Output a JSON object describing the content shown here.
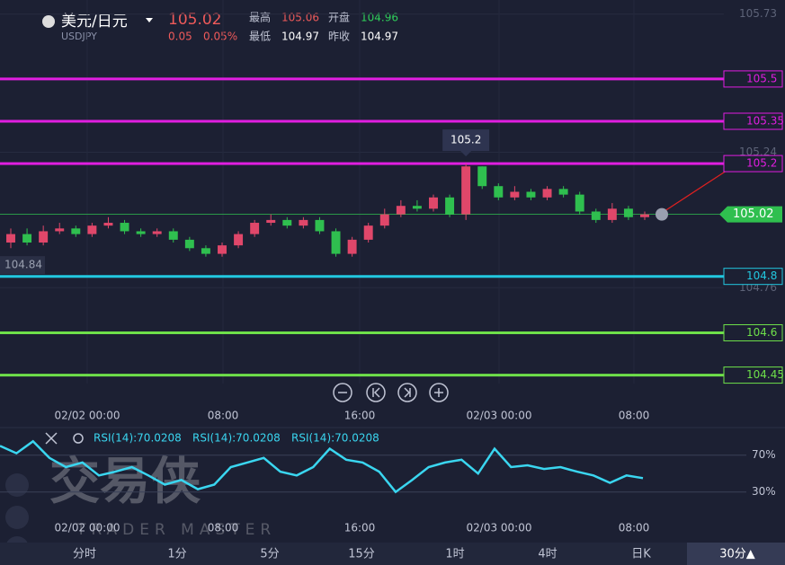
{
  "header": {
    "symbol": "美元/日元",
    "code": "USDJPY",
    "price": "105.02",
    "change": "0.05",
    "change_pct": "0.05%",
    "stats": [
      {
        "label": "最高",
        "value": "105.06"
      },
      {
        "label": "开盘",
        "value": "104.96"
      },
      {
        "label": "最低",
        "value": "104.97"
      },
      {
        "label": "昨收",
        "value": "104.97"
      }
    ]
  },
  "chart_data": {
    "type": "candlestick",
    "ylim": [
      104.42,
      105.78
    ],
    "yticks": [
      105.73,
      105.24,
      104.76
    ],
    "levels": [
      {
        "value": 105.5,
        "color": "#e01ee0"
      },
      {
        "value": 105.35,
        "color": "#e01ee0"
      },
      {
        "value": 105.2,
        "color": "#e01ee0"
      },
      {
        "value": 104.8,
        "color": "#22c8e0"
      },
      {
        "value": 104.6,
        "color": "#6ee04a"
      },
      {
        "value": 104.45,
        "color": "#6ee04a"
      }
    ],
    "last_price": 105.02,
    "cursor_label": 104.84,
    "peak_label": 105.2,
    "up_color": "#e0476a",
    "down_color": "#2fbf4f",
    "ohlc": [
      [
        104.92,
        104.97,
        104.9,
        104.95
      ],
      [
        104.95,
        104.97,
        104.91,
        104.92
      ],
      [
        104.92,
        104.98,
        104.91,
        104.96
      ],
      [
        104.96,
        104.99,
        104.95,
        104.97
      ],
      [
        104.97,
        104.98,
        104.94,
        104.95
      ],
      [
        104.95,
        104.99,
        104.94,
        104.98
      ],
      [
        104.98,
        105.01,
        104.97,
        104.99
      ],
      [
        104.99,
        105.0,
        104.95,
        104.96
      ],
      [
        104.96,
        104.97,
        104.94,
        104.95
      ],
      [
        104.95,
        104.97,
        104.94,
        104.96
      ],
      [
        104.96,
        104.97,
        104.92,
        104.93
      ],
      [
        104.93,
        104.94,
        104.89,
        104.9
      ],
      [
        104.9,
        104.91,
        104.87,
        104.88
      ],
      [
        104.88,
        104.92,
        104.87,
        104.91
      ],
      [
        104.91,
        104.96,
        104.9,
        104.95
      ],
      [
        104.95,
        105.0,
        104.94,
        104.99
      ],
      [
        104.99,
        105.02,
        104.98,
        105.0
      ],
      [
        105.0,
        105.01,
        104.97,
        104.98
      ],
      [
        104.98,
        105.01,
        104.97,
        105.0
      ],
      [
        105.0,
        105.01,
        104.95,
        104.96
      ],
      [
        104.96,
        104.97,
        104.87,
        104.88
      ],
      [
        104.88,
        104.94,
        104.87,
        104.93
      ],
      [
        104.93,
        104.99,
        104.92,
        104.98
      ],
      [
        104.98,
        105.04,
        104.97,
        105.02
      ],
      [
        105.02,
        105.07,
        105.01,
        105.05
      ],
      [
        105.05,
        105.07,
        105.03,
        105.04
      ],
      [
        105.04,
        105.09,
        105.03,
        105.08
      ],
      [
        105.08,
        105.09,
        105.01,
        105.02
      ],
      [
        105.02,
        105.2,
        105.0,
        105.19
      ],
      [
        105.19,
        105.19,
        105.11,
        105.12
      ],
      [
        105.12,
        105.13,
        105.07,
        105.08
      ],
      [
        105.08,
        105.12,
        105.07,
        105.1
      ],
      [
        105.1,
        105.11,
        105.07,
        105.08
      ],
      [
        105.08,
        105.12,
        105.07,
        105.11
      ],
      [
        105.11,
        105.12,
        105.08,
        105.09
      ],
      [
        105.09,
        105.1,
        105.02,
        105.03
      ],
      [
        105.03,
        105.04,
        104.99,
        105.0
      ],
      [
        105.0,
        105.06,
        104.99,
        105.04
      ],
      [
        105.04,
        105.05,
        105.0,
        105.01
      ],
      [
        105.01,
        105.03,
        105.0,
        105.02
      ]
    ],
    "x_labels": [
      "02/02 00:00",
      "08:00",
      "16:00",
      "02/03 00:00",
      "08:00"
    ],
    "rsi": {
      "labels": [
        "RSI(14):70.0208",
        "RSI(14):70.0208",
        "RSI(14):70.0208"
      ],
      "color": "#3ad6f0",
      "ylim": [
        18,
        98
      ],
      "yticks": [
        {
          "value": 70,
          "label": "70%"
        },
        {
          "value": 30,
          "label": "30%"
        }
      ],
      "values": [
        80,
        72,
        85,
        67,
        57,
        62,
        48,
        52,
        57,
        48,
        38,
        43,
        33,
        38,
        57,
        62,
        67,
        52,
        48,
        57,
        77,
        65,
        62,
        52,
        30,
        43,
        57,
        62,
        65,
        50,
        77,
        57,
        59,
        55,
        57,
        52,
        48,
        40,
        48,
        45
      ]
    }
  },
  "watermark": {
    "cn": "交易侠",
    "en": "TRADER MASTER"
  },
  "tabs": [
    "分时",
    "1分",
    "5分",
    "15分",
    "1时",
    "4时",
    "日K",
    "30分▲"
  ]
}
